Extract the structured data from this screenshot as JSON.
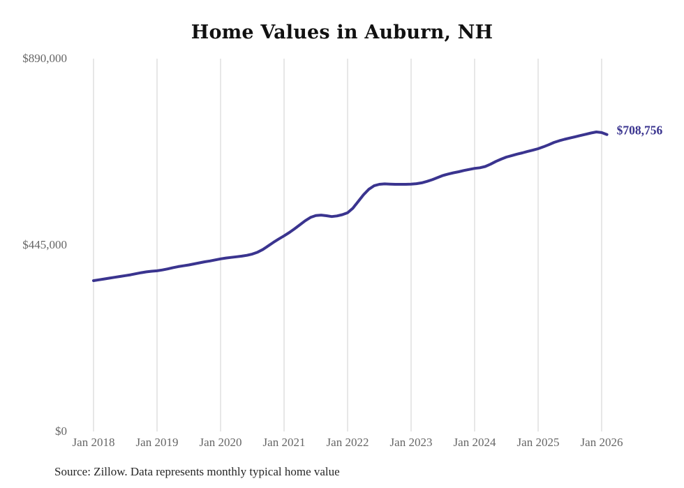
{
  "page": {
    "title": "Home Values in Auburn, NH",
    "source_note": "Source: Zillow. Data represents monthly typical home value"
  },
  "colors": {
    "line": "#3a348f",
    "end_label": "#3a348f",
    "grid": "#cfcfcf",
    "tick_text": "#666666",
    "title_text": "#111111",
    "source_text": "#262626",
    "background": "#ffffff"
  },
  "chart_data": {
    "type": "line",
    "title": "Home Values in Auburn, NH",
    "series_name": "Monthly typical home value",
    "x_unit": "month",
    "x_start": "2018-01",
    "x_end": "2026-02",
    "x_tick_labels": [
      "Jan 2018",
      "Jan 2019",
      "Jan 2020",
      "Jan 2021",
      "Jan 2022",
      "Jan 2023",
      "Jan 2024",
      "Jan 2025",
      "Jan 2026"
    ],
    "y_ticks": [
      {
        "label": "$890,000",
        "value": 890000
      },
      {
        "label": "$445,000",
        "value": 445000
      },
      {
        "label": "$0",
        "value": 0
      }
    ],
    "ylim": [
      0,
      890000
    ],
    "grid": "vertical-only",
    "legend": "none",
    "end_label": "$708,756",
    "end_value": 708756,
    "months": [
      "2018-01",
      "2018-02",
      "2018-03",
      "2018-04",
      "2018-05",
      "2018-06",
      "2018-07",
      "2018-08",
      "2018-09",
      "2018-10",
      "2018-11",
      "2018-12",
      "2019-01",
      "2019-02",
      "2019-03",
      "2019-04",
      "2019-05",
      "2019-06",
      "2019-07",
      "2019-08",
      "2019-09",
      "2019-10",
      "2019-11",
      "2019-12",
      "2020-01",
      "2020-02",
      "2020-03",
      "2020-04",
      "2020-05",
      "2020-06",
      "2020-07",
      "2020-08",
      "2020-09",
      "2020-10",
      "2020-11",
      "2020-12",
      "2021-01",
      "2021-02",
      "2021-03",
      "2021-04",
      "2021-05",
      "2021-06",
      "2021-07",
      "2021-08",
      "2021-09",
      "2021-10",
      "2021-11",
      "2021-12",
      "2022-01",
      "2022-02",
      "2022-03",
      "2022-04",
      "2022-05",
      "2022-06",
      "2022-07",
      "2022-08",
      "2022-09",
      "2022-10",
      "2022-11",
      "2022-12",
      "2023-01",
      "2023-02",
      "2023-03",
      "2023-04",
      "2023-05",
      "2023-06",
      "2023-07",
      "2023-08",
      "2023-09",
      "2023-10",
      "2023-11",
      "2023-12",
      "2024-01",
      "2024-02",
      "2024-03",
      "2024-04",
      "2024-05",
      "2024-06",
      "2024-07",
      "2024-08",
      "2024-09",
      "2024-10",
      "2024-11",
      "2024-12",
      "2025-01",
      "2025-02",
      "2025-03",
      "2025-04",
      "2025-05",
      "2025-06",
      "2025-07",
      "2025-08",
      "2025-09",
      "2025-10",
      "2025-11",
      "2025-12",
      "2026-01",
      "2026-02"
    ],
    "values": [
      360000,
      362000,
      364000,
      366000,
      368000,
      370000,
      372000,
      374000,
      376500,
      379000,
      381000,
      382500,
      383500,
      385500,
      388000,
      391000,
      393500,
      395500,
      397500,
      400000,
      402500,
      405000,
      407000,
      409500,
      412000,
      414000,
      415500,
      417000,
      418500,
      420500,
      423500,
      428000,
      434500,
      443000,
      451500,
      459500,
      467000,
      475000,
      484000,
      493500,
      503000,
      511000,
      515500,
      516500,
      515000,
      513000,
      514500,
      517500,
      522000,
      533000,
      549000,
      565000,
      578000,
      586500,
      590000,
      591000,
      590500,
      590000,
      590000,
      590000,
      590500,
      591500,
      593500,
      597000,
      601000,
      606000,
      611000,
      614500,
      617500,
      620000,
      623000,
      625500,
      628000,
      629500,
      632500,
      638000,
      644500,
      650000,
      655000,
      658500,
      662000,
      665000,
      668500,
      671500,
      675000,
      679500,
      684500,
      690000,
      694000,
      697500,
      700500,
      703500,
      706500,
      709500,
      712500,
      715000,
      713500,
      708756
    ]
  }
}
